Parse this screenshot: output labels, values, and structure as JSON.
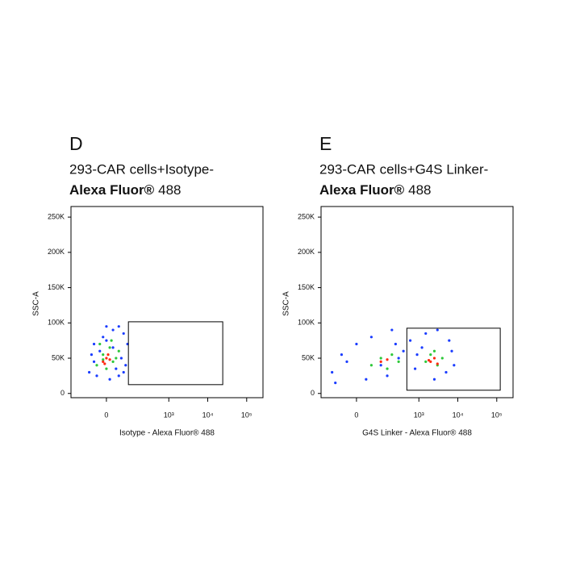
{
  "chart_data": [
    {
      "type": "scatter",
      "panel": "D",
      "title": "293-CAR  cells+Isotype-",
      "subtitle": [
        "Alexa Fluor®",
        "488"
      ],
      "xlabel": "Isotype - Alexa Fluor® 488",
      "ylabel": "SSC-A",
      "xscale": "biexponential",
      "xlim": [
        -200,
        262144
      ],
      "ylim": [
        -6000,
        265000
      ],
      "xticks": [
        0,
        {
          "value": 1000,
          "label": "10³"
        },
        {
          "value": 10000,
          "label": "10⁴"
        },
        {
          "value": 100000,
          "label": "10⁵"
        }
      ],
      "yticks": [
        0,
        {
          "value": 50000,
          "label": "50K"
        },
        {
          "value": 100000,
          "label": "100K"
        },
        {
          "value": 150000,
          "label": "150K"
        },
        {
          "value": 200000,
          "label": "200K"
        },
        {
          "value": 250000,
          "label": "250K"
        }
      ],
      "series": [
        {
          "color": "#1a3cff",
          "x": [
            -60,
            -40,
            -20,
            0,
            20,
            40,
            60,
            80,
            -50,
            -30,
            10,
            30,
            50,
            70,
            -10,
            20,
            -40,
            60,
            0,
            40
          ],
          "y": [
            30000,
            45000,
            60000,
            75000,
            90000,
            95000,
            85000,
            70000,
            55000,
            25000,
            20000,
            35000,
            50000,
            40000,
            80000,
            65000,
            70000,
            30000,
            95000,
            25000
          ]
        },
        {
          "color": "#2ec83a",
          "x": [
            -30,
            -10,
            10,
            30,
            -20,
            0,
            20,
            40,
            -10,
            15
          ],
          "y": [
            40000,
            55000,
            65000,
            50000,
            70000,
            35000,
            45000,
            60000,
            48000,
            75000
          ]
        },
        {
          "color": "#ff2a10",
          "x": [
            -10,
            0,
            10,
            -5,
            5
          ],
          "y": [
            45000,
            50000,
            48000,
            42000,
            55000
          ]
        }
      ],
      "gates": [
        {
          "x": [
            85,
            24300
          ],
          "y": [
            12500,
            101600
          ]
        }
      ]
    },
    {
      "type": "scatter",
      "panel": "E",
      "title": "293-CAR  cells+G4S  Linker-",
      "subtitle": [
        "Alexa Fluor®",
        "488"
      ],
      "xlabel": "G4S Linker - Alexa Fluor® 488",
      "ylabel": "SSC-A",
      "xscale": "biexponential",
      "xlim": [
        -200,
        262144
      ],
      "ylim": [
        -6000,
        265000
      ],
      "xticks": [
        0,
        {
          "value": 1000,
          "label": "10³"
        },
        {
          "value": 10000,
          "label": "10⁴"
        },
        {
          "value": 100000,
          "label": "10⁵"
        }
      ],
      "yticks": [
        0,
        {
          "value": 50000,
          "label": "50K"
        },
        {
          "value": 100000,
          "label": "100K"
        },
        {
          "value": 150000,
          "label": "150K"
        },
        {
          "value": 200000,
          "label": "200K"
        },
        {
          "value": 250000,
          "label": "250K"
        }
      ],
      "series": [
        {
          "color": "#1a3cff",
          "x": [
            -100,
            -50,
            0,
            50,
            100,
            200,
            400,
            800,
            1500,
            3000,
            6000,
            8000,
            -80,
            30,
            150,
            300,
            600,
            1200,
            2500,
            5000,
            7000,
            250,
            -30,
            900
          ],
          "y": [
            30000,
            55000,
            70000,
            80000,
            40000,
            90000,
            60000,
            35000,
            85000,
            90000,
            75000,
            40000,
            15000,
            20000,
            25000,
            50000,
            75000,
            65000,
            20000,
            30000,
            60000,
            70000,
            45000,
            55000
          ]
        },
        {
          "color": "#2ec83a",
          "x": [
            50,
            100,
            200,
            300,
            1500,
            2000,
            3000,
            4000,
            150,
            2500
          ],
          "y": [
            40000,
            50000,
            55000,
            45000,
            45000,
            55000,
            40000,
            50000,
            35000,
            60000
          ]
        },
        {
          "color": "#ff2a10",
          "x": [
            100,
            150,
            2000,
            2500,
            3000,
            1800
          ],
          "y": [
            45000,
            48000,
            45000,
            50000,
            42000,
            47000
          ]
        }
      ],
      "gates": [
        {
          "x": [
            490,
            123000
          ],
          "y": [
            4600,
            92500
          ]
        }
      ]
    }
  ]
}
